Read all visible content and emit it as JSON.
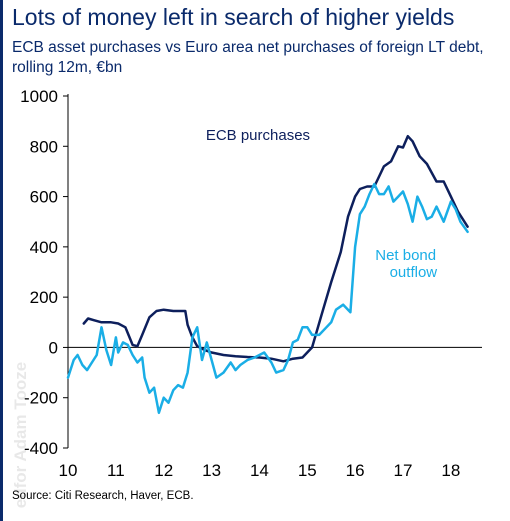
{
  "title": "Lots of money left in search of higher yields",
  "subtitle": "ECB asset purchases vs Euro area net purchases of foreign LT debt, rolling 12m, €bn",
  "source": "Source: Citi Research, Haver, ECB.",
  "watermark": "edfor Adam Tooze",
  "colors": {
    "ecb": "#0d1f5c",
    "bond": "#1aaee6",
    "text": "#0a2a6b"
  },
  "chart_data": {
    "type": "line",
    "x_ticks": [
      "10",
      "11",
      "12",
      "13",
      "14",
      "15",
      "16",
      "17",
      "18"
    ],
    "y_ticks": [
      "1000",
      "800",
      "600",
      "400",
      "200",
      "0",
      "-200",
      "-400"
    ],
    "xlim": [
      2010,
      2018.4
    ],
    "ylim": [
      -400,
      1000
    ],
    "grid": false,
    "annotations": [
      {
        "text": "ECB purchases",
        "series": "ECB purchases"
      },
      {
        "text": "Net bond",
        "series": "Net bond outflow"
      },
      {
        "text": "outflow",
        "series": "Net bond outflow"
      }
    ],
    "series": [
      {
        "name": "ECB purchases",
        "color": "#0d1f5c",
        "x": [
          2010.33,
          2010.42,
          2010.55,
          2010.7,
          2010.9,
          2011.05,
          2011.2,
          2011.35,
          2011.45,
          2011.55,
          2011.7,
          2011.85,
          2012.0,
          2012.2,
          2012.45,
          2012.5,
          2012.6,
          2012.7,
          2012.85,
          2013.0,
          2013.25,
          2013.5,
          2013.75,
          2014.0,
          2014.25,
          2014.5,
          2014.7,
          2014.9,
          2015.1,
          2015.3,
          2015.5,
          2015.7,
          2015.85,
          2016.0,
          2016.1,
          2016.25,
          2016.4,
          2016.5,
          2016.6,
          2016.75,
          2016.9,
          2017.0,
          2017.1,
          2017.2,
          2017.35,
          2017.5,
          2017.7,
          2017.85,
          2018.0,
          2018.15,
          2018.35
        ],
        "y": [
          95,
          115,
          108,
          100,
          100,
          95,
          80,
          10,
          5,
          50,
          120,
          145,
          150,
          145,
          145,
          90,
          40,
          5,
          -10,
          -20,
          -30,
          -35,
          -38,
          -40,
          -45,
          -55,
          -45,
          -40,
          0,
          130,
          260,
          380,
          520,
          600,
          630,
          640,
          640,
          680,
          720,
          740,
          800,
          795,
          840,
          820,
          760,
          730,
          660,
          660,
          600,
          540,
          480
        ]
      },
      {
        "name": "Net bond outflow",
        "color": "#1aaee6",
        "x": [
          2010.0,
          2010.12,
          2010.2,
          2010.3,
          2010.4,
          2010.5,
          2010.6,
          2010.7,
          2010.8,
          2010.9,
          2011.0,
          2011.05,
          2011.15,
          2011.25,
          2011.35,
          2011.45,
          2011.55,
          2011.6,
          2011.7,
          2011.8,
          2011.9,
          2012.0,
          2012.1,
          2012.2,
          2012.3,
          2012.4,
          2012.5,
          2012.6,
          2012.7,
          2012.8,
          2012.9,
          2013.0,
          2013.1,
          2013.25,
          2013.4,
          2013.5,
          2013.6,
          2013.75,
          2013.9,
          2014.0,
          2014.1,
          2014.25,
          2014.35,
          2014.5,
          2014.6,
          2014.7,
          2014.8,
          2014.9,
          2015.0,
          2015.1,
          2015.25,
          2015.4,
          2015.5,
          2015.6,
          2015.75,
          2015.9,
          2016.0,
          2016.1,
          2016.2,
          2016.3,
          2016.4,
          2016.5,
          2016.6,
          2016.7,
          2016.8,
          2016.9,
          2017.0,
          2017.1,
          2017.2,
          2017.3,
          2017.4,
          2017.5,
          2017.6,
          2017.7,
          2017.85,
          2018.0,
          2018.1,
          2018.2,
          2018.35
        ],
        "y": [
          -120,
          -50,
          -30,
          -70,
          -90,
          -60,
          -30,
          80,
          -10,
          -70,
          40,
          -20,
          20,
          10,
          -30,
          -60,
          -40,
          -120,
          -180,
          -160,
          -260,
          -200,
          -220,
          -170,
          -150,
          -160,
          -100,
          40,
          80,
          -50,
          20,
          -50,
          -120,
          -100,
          -60,
          -90,
          -70,
          -50,
          -40,
          -30,
          -20,
          -60,
          -100,
          -90,
          -50,
          20,
          30,
          80,
          80,
          50,
          50,
          80,
          100,
          150,
          170,
          140,
          400,
          530,
          560,
          610,
          650,
          610,
          610,
          640,
          580,
          600,
          620,
          570,
          500,
          600,
          560,
          510,
          520,
          560,
          500,
          580,
          550,
          500,
          460
        ]
      }
    ]
  }
}
